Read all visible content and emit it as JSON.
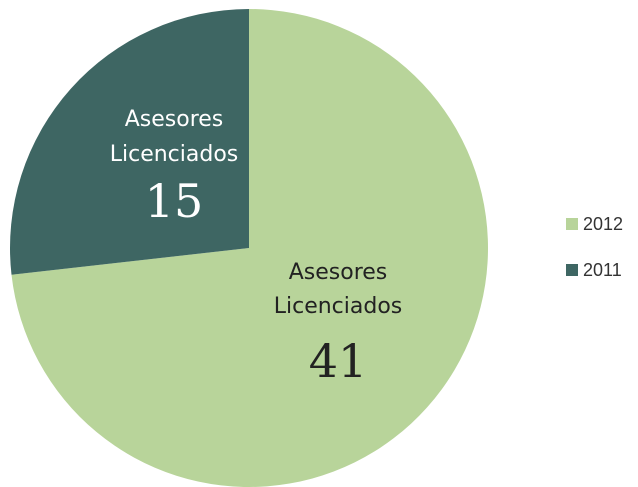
{
  "chart_data": {
    "type": "pie",
    "categories": [
      "2012",
      "2011"
    ],
    "values": [
      41,
      15
    ],
    "colors": [
      "#b8d49a",
      "#3e6663"
    ],
    "slice_labels": [
      [
        "Asesores",
        "Licenciados"
      ],
      [
        "Asesores",
        "Licenciados"
      ]
    ],
    "legend": "right"
  }
}
